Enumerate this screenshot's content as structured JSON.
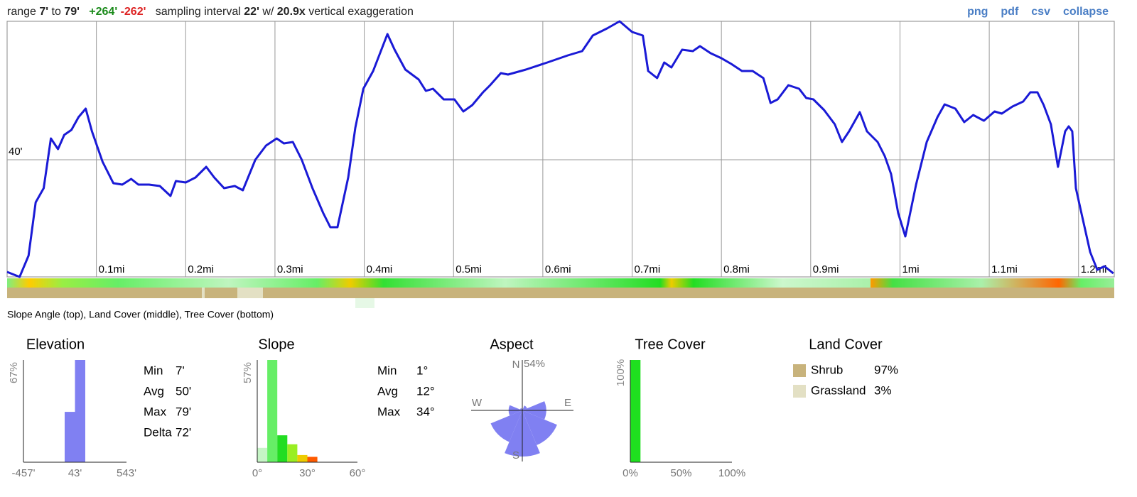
{
  "header": {
    "range_label": "range",
    "range_min": "7'",
    "to": "to",
    "range_max": "79'",
    "gain": "+264'",
    "loss": "-262'",
    "interval_label": "sampling interval",
    "interval": "22'",
    "w": "w/",
    "exaggeration": "20.9x",
    "exaggeration_label": "vertical exaggeration",
    "links": [
      "png",
      "pdf",
      "csv",
      "collapse"
    ]
  },
  "band_caption": "Slope Angle (top), Land Cover (middle), Tree Cover (bottom)",
  "chart_data": [
    {
      "type": "line",
      "color": "#1a1ad6",
      "grid": true,
      "x": [
        0,
        0.014,
        0.024,
        0.032,
        0.041,
        0.049,
        0.057,
        0.064,
        0.072,
        0.08,
        0.088,
        0.095,
        0.107,
        0.119,
        0.129,
        0.139,
        0.147,
        0.159,
        0.171,
        0.183,
        0.189,
        0.2,
        0.211,
        0.223,
        0.232,
        0.243,
        0.255,
        0.264,
        0.278,
        0.29,
        0.302,
        0.31,
        0.32,
        0.33,
        0.342,
        0.354,
        0.362,
        0.37,
        0.382,
        0.39,
        0.399,
        0.41,
        0.426,
        0.434,
        0.446,
        0.461,
        0.469,
        0.477,
        0.489,
        0.501,
        0.511,
        0.521,
        0.533,
        0.541,
        0.553,
        0.561,
        0.581,
        0.605,
        0.628,
        0.644,
        0.656,
        0.672,
        0.686,
        0.7,
        0.712,
        0.718,
        0.728,
        0.736,
        0.744,
        0.756,
        0.768,
        0.776,
        0.788,
        0.8,
        0.811,
        0.823,
        0.835,
        0.847,
        0.855,
        0.863,
        0.875,
        0.887,
        0.895,
        0.903,
        0.915,
        0.927,
        0.935,
        0.943,
        0.955,
        0.963,
        0.975,
        0.983,
        0.99,
        0.998,
        1.006,
        1.018,
        1.03,
        1.042,
        1.05,
        1.062,
        1.072,
        1.082,
        1.094,
        1.106,
        1.114,
        1.126,
        1.138,
        1.146,
        1.154,
        1.161,
        1.169,
        1.177,
        1.185,
        1.189,
        1.193,
        1.197,
        1.205,
        1.213,
        1.221,
        1.229,
        1.239
      ],
      "values": [
        8.4,
        7,
        13,
        28,
        32,
        46,
        43,
        47,
        48.4,
        52,
        54.4,
        48,
        39.4,
        33.4,
        33,
        34.6,
        33,
        33,
        32.6,
        29.8,
        34,
        33.6,
        35,
        38,
        35,
        32,
        32.6,
        31.4,
        40,
        44,
        46,
        44.6,
        45,
        40,
        32,
        25,
        21,
        21,
        35,
        49,
        60,
        65,
        75.4,
        71,
        65.4,
        62.6,
        59.4,
        60,
        57,
        57,
        53.6,
        55.4,
        59,
        61,
        64.4,
        64,
        65.4,
        67.4,
        69.4,
        70.6,
        75,
        77,
        79,
        76,
        75,
        65,
        63,
        67.4,
        66,
        71,
        70.6,
        72,
        70,
        68.6,
        67,
        65,
        65,
        63,
        56,
        57,
        61,
        60,
        57.4,
        57,
        54,
        50,
        45,
        48,
        53.4,
        48,
        45,
        41,
        36,
        25,
        18.4,
        33,
        45,
        52,
        55.6,
        54.4,
        50.6,
        52.6,
        51,
        53.6,
        53,
        55,
        56.4,
        59,
        59,
        55.4,
        50,
        38,
        48,
        49.4,
        48,
        32,
        23,
        14,
        9,
        10,
        8
      ],
      "xlim": [
        0,
        1.24
      ],
      "ylim": [
        7,
        79
      ],
      "xticks": [
        {
          "value": 0.1,
          "label": "0.1mi"
        },
        {
          "value": 0.2,
          "label": "0.2mi"
        },
        {
          "value": 0.3,
          "label": "0.3mi"
        },
        {
          "value": 0.4,
          "label": "0.4mi"
        },
        {
          "value": 0.5,
          "label": "0.5mi"
        },
        {
          "value": 0.6,
          "label": "0.6mi"
        },
        {
          "value": 0.7,
          "label": "0.7mi"
        },
        {
          "value": 0.8,
          "label": "0.8mi"
        },
        {
          "value": 0.9,
          "label": "0.9mi"
        },
        {
          "value": 1.0,
          "label": "1mi"
        },
        {
          "value": 1.1,
          "label": "1.1mi"
        },
        {
          "value": 1.2,
          "label": "1.2mi"
        }
      ],
      "yticks": [
        {
          "value": 40,
          "label": "40'"
        }
      ]
    },
    {
      "type": "histogram",
      "title": "Elevation",
      "color": "#8080f2",
      "bins": [
        -57,
        43,
        143
      ],
      "values": [
        33,
        67
      ],
      "xlim": [
        -457,
        543
      ],
      "xticks": [
        {
          "value": -457,
          "label": "-457'"
        },
        {
          "value": 43,
          "label": "43'"
        },
        {
          "value": 543,
          "label": "543'"
        }
      ],
      "ylim": [
        0,
        67
      ],
      "yticks": [
        {
          "value": 67,
          "label": "67%"
        }
      ]
    },
    {
      "type": "histogram",
      "title": "Slope",
      "colors": [
        "#c6f5c6",
        "#66ee66",
        "#22dd22",
        "#99ee22",
        "#eecc00",
        "#ff5a00"
      ],
      "bins": [
        0,
        6,
        12,
        18,
        24,
        30,
        36
      ],
      "values": [
        8,
        57,
        15,
        10,
        4,
        3
      ],
      "xlim": [
        0,
        60
      ],
      "xticks": [
        {
          "value": 0,
          "label": "0°"
        },
        {
          "value": 30,
          "label": "30°"
        },
        {
          "value": 60,
          "label": "60°"
        }
      ],
      "ylim": [
        0,
        57
      ],
      "yticks": [
        {
          "value": 57,
          "label": "57%"
        }
      ]
    },
    {
      "type": "rose",
      "title": "Aspect",
      "color": "#8080f2",
      "categories": [
        "N",
        null,
        "E",
        null,
        "S",
        null,
        "W",
        null
      ],
      "values": [
        1,
        6,
        28,
        44,
        54,
        40,
        16,
        3
      ],
      "rlim": [
        0,
        54
      ],
      "rticks": [
        {
          "value": 54,
          "label": "54%"
        }
      ]
    },
    {
      "type": "histogram",
      "title": "Tree Cover",
      "color": "#1fe01f",
      "bins": [
        0,
        10
      ],
      "values": [
        100
      ],
      "xlim": [
        0,
        100
      ],
      "xticks": [
        {
          "value": 0,
          "label": "0%"
        },
        {
          "value": 50,
          "label": "50%"
        },
        {
          "value": 100,
          "label": "100%"
        }
      ],
      "ylim": [
        0,
        100
      ],
      "yticks": [
        {
          "value": 100,
          "label": "100%"
        }
      ]
    }
  ],
  "elevation_stats": [
    [
      "Min",
      "7'"
    ],
    [
      "Avg",
      "50'"
    ],
    [
      "Max",
      "79'"
    ],
    [
      "Delta",
      "72'"
    ]
  ],
  "slope_stats": [
    [
      "Min",
      "1°"
    ],
    [
      "Avg",
      "12°"
    ],
    [
      "Max",
      "34°"
    ]
  ],
  "land_cover": {
    "title": "Land Cover",
    "items": [
      {
        "name": "Shrub",
        "percent": "97%",
        "color": "#c8b37c"
      },
      {
        "name": "Grassland",
        "percent": "3%",
        "color": "#e3e0c4"
      }
    ]
  }
}
